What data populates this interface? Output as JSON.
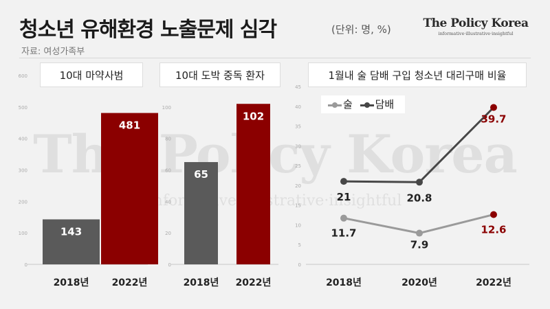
{
  "header": {
    "title": "청소년 유해환경 노출문제 심각",
    "unit": "(단위: 명, %)",
    "source": "자료: 여성가족부"
  },
  "brand": {
    "name": "The Policy Korea",
    "tagline": "informative·illustrative·insightful"
  },
  "watermark": {
    "name": "The Policy Korea",
    "tagline": "informative·illustrative·insightful"
  },
  "colors": {
    "background": "#f2f2f2",
    "gray": "#5a5a5a",
    "red": "#8b0000",
    "light_line": "#9a9a9a",
    "dark_line": "#474747"
  },
  "legend": {
    "alcohol": "술",
    "tobacco": "담배"
  },
  "chart_data": [
    {
      "type": "bar",
      "title": "10대 마약사범",
      "categories": [
        "2018년",
        "2022년"
      ],
      "values": [
        143,
        481
      ],
      "ylim": [
        0,
        600
      ],
      "yticks": [
        0,
        100,
        200,
        300,
        400,
        500,
        600
      ],
      "grid": false
    },
    {
      "type": "bar",
      "title": "10대 도박 중독 환자",
      "categories": [
        "2018년",
        "2022년"
      ],
      "values": [
        65,
        102
      ],
      "ylim": [
        0,
        120
      ],
      "yticks": [
        0,
        20,
        40,
        60,
        80,
        100
      ],
      "grid": false
    },
    {
      "type": "line",
      "title": "1월내 술 담배 구입 청소년 대리구매 비율",
      "categories": [
        "2018년",
        "2020년",
        "2022년"
      ],
      "ylim": [
        0,
        45
      ],
      "yticks": [
        0,
        5,
        10,
        15,
        20,
        25,
        30,
        35,
        40,
        45
      ],
      "legend_position": "top-left",
      "series": [
        {
          "name": "술",
          "values": [
            11.7,
            7.9,
            12.6
          ]
        },
        {
          "name": "담배",
          "values": [
            21,
            20.8,
            39.7
          ]
        }
      ]
    }
  ]
}
